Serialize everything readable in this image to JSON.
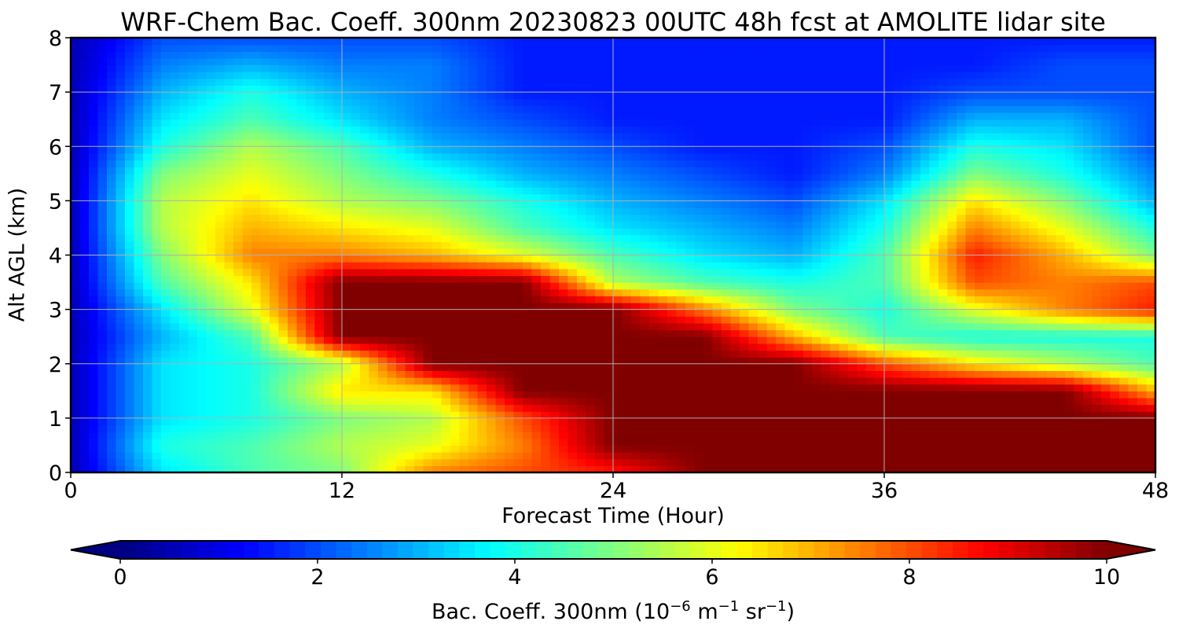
{
  "title": "WRF-Chem Bac. Coeff. 300nm  20230823 00UTC 48h fcst at AMOLITE lidar site",
  "colorbar": {
    "label_main": "Bac. Coeff. 300nm  (10",
    "label_exp1": "−6",
    "label_mid1": " m",
    "label_exp2": "−1",
    "label_mid2": " sr",
    "label_exp3": "−1",
    "label_end": ")",
    "ticks": [
      "0",
      "2",
      "4",
      "6",
      "8",
      "10"
    ],
    "min": 0,
    "max": 10,
    "extend": "both",
    "colormap": "jet"
  },
  "chart_data": {
    "type": "heatmap",
    "title": "WRF-Chem Bac. Coeff. 300nm  20230823 00UTC 48h fcst at AMOLITE lidar site",
    "xlabel": "Forecast Time (Hour)",
    "ylabel": "Alt AGL (km)",
    "xlim": [
      0,
      48
    ],
    "ylim": [
      0,
      8
    ],
    "xticks": [
      "0",
      "12",
      "24",
      "36",
      "48"
    ],
    "yticks": [
      "0",
      "1",
      "2",
      "3",
      "4",
      "5",
      "6",
      "7",
      "8"
    ],
    "grid": true,
    "value_range": [
      0,
      10
    ],
    "x_hours": [
      0,
      4,
      8,
      12,
      16,
      20,
      24,
      28,
      32,
      36,
      40,
      44,
      48
    ],
    "y_km": [
      0,
      0.5,
      1,
      1.5,
      2,
      2.5,
      3,
      3.5,
      4,
      4.5,
      5,
      5.5,
      6,
      6.5,
      7,
      7.5,
      8
    ],
    "z": [
      [
        0.5,
        3.5,
        4.5,
        5.0,
        7.5,
        8.0,
        8.5,
        10,
        10,
        10,
        10,
        10,
        10
      ],
      [
        0.5,
        4.0,
        4.5,
        5.5,
        6.0,
        7.5,
        10,
        10,
        10,
        10,
        10,
        10,
        10
      ],
      [
        0.5,
        3.5,
        4.0,
        5.0,
        5.5,
        8.0,
        10,
        10,
        10,
        10,
        10,
        10,
        10
      ],
      [
        0.5,
        3.5,
        4.0,
        6.5,
        6.5,
        10,
        10,
        10,
        10,
        10,
        10,
        10,
        7.0
      ],
      [
        0.5,
        3.5,
        4.0,
        5.5,
        10,
        10,
        10,
        10,
        10,
        8.0,
        6.5,
        5.5,
        4.5
      ],
      [
        0.5,
        3.0,
        4.5,
        10,
        10,
        10,
        10,
        10,
        7.0,
        4.5,
        4.0,
        4.0,
        4.0
      ],
      [
        0.5,
        3.5,
        6.0,
        10,
        10,
        10,
        10,
        7.5,
        5.0,
        4.0,
        6.0,
        7.5,
        8.5
      ],
      [
        0.5,
        4.5,
        6.5,
        10,
        10,
        10,
        5.5,
        4.5,
        4.0,
        4.5,
        8.0,
        7.5,
        8.0
      ],
      [
        0.5,
        5.0,
        7.5,
        7.5,
        7.0,
        6.0,
        4.5,
        3.5,
        3.0,
        4.5,
        8.5,
        7.0,
        5.0
      ],
      [
        0.5,
        5.5,
        7.0,
        6.5,
        6.0,
        4.5,
        3.5,
        3.0,
        2.5,
        4.0,
        7.5,
        6.0,
        4.0
      ],
      [
        0.5,
        5.5,
        6.5,
        5.5,
        5.0,
        4.0,
        3.0,
        2.5,
        2.0,
        3.5,
        6.5,
        5.0,
        3.0
      ],
      [
        0.5,
        5.0,
        6.0,
        5.0,
        4.0,
        3.0,
        2.5,
        2.0,
        1.5,
        2.5,
        5.0,
        4.0,
        2.5
      ],
      [
        0.5,
        4.0,
        5.5,
        4.5,
        3.0,
        2.5,
        2.0,
        1.5,
        1.5,
        2.0,
        4.0,
        3.5,
        2.0
      ],
      [
        0.5,
        3.5,
        4.5,
        3.5,
        2.5,
        2.0,
        1.5,
        1.5,
        1.5,
        1.5,
        3.0,
        3.0,
        2.0
      ],
      [
        0.5,
        3.0,
        4.0,
        3.0,
        2.5,
        1.5,
        1.5,
        1.5,
        1.5,
        1.5,
        2.0,
        2.0,
        2.0
      ],
      [
        0.5,
        2.5,
        3.0,
        2.5,
        2.5,
        1.5,
        1.5,
        1.5,
        1.5,
        1.5,
        1.5,
        2.0,
        2.0
      ],
      [
        0.5,
        2.0,
        2.0,
        2.0,
        2.0,
        1.5,
        1.5,
        1.5,
        1.5,
        1.5,
        1.5,
        1.5,
        1.5
      ]
    ]
  }
}
